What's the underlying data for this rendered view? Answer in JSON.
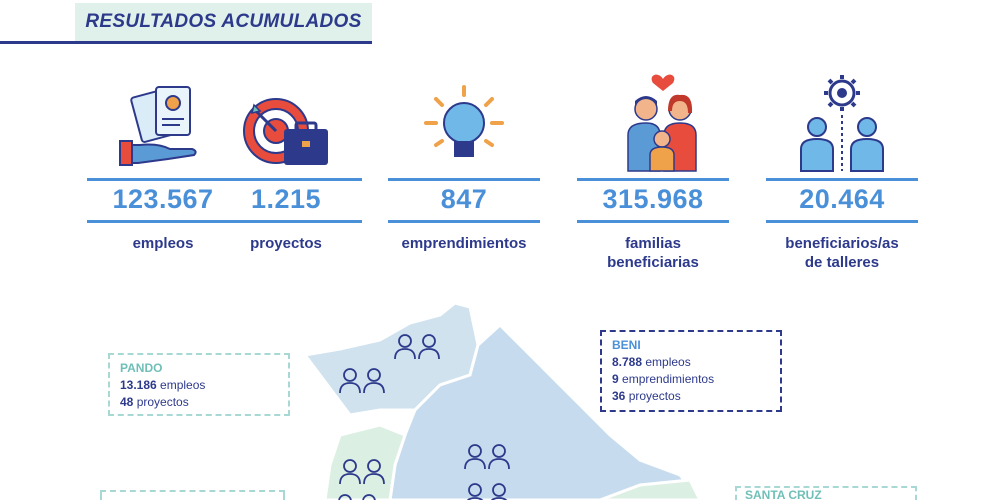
{
  "header": {
    "title": "RESULTADOS ACUMULADOS"
  },
  "stats": [
    {
      "value": "123.567",
      "label": "empleos",
      "icon": "job-offer-hand-icon"
    },
    {
      "value": "1.215",
      "label": "proyectos",
      "icon": "target-briefcase-icon"
    },
    {
      "value": "847",
      "label": "emprendimientos",
      "icon": "lightbulb-icon"
    },
    {
      "value": "315.968",
      "label1": "familias",
      "label2": "beneficiarias",
      "icon": "family-heart-icon"
    },
    {
      "value": "20.464",
      "label1": "beneficiarios/as",
      "label2": "de talleres",
      "icon": "people-gear-icon"
    }
  ],
  "regions": {
    "pando": {
      "name": "PANDO",
      "lines": [
        {
          "num": "13.186",
          "text": "empleos"
        },
        {
          "num": "48",
          "text": "proyectos"
        }
      ]
    },
    "beni": {
      "name": "BENI",
      "lines": [
        {
          "num": "8.788",
          "text": "empleos"
        },
        {
          "num": "9",
          "text": "emprendimientos"
        },
        {
          "num": "36",
          "text": "proyectos"
        }
      ]
    },
    "santa_cruz": {
      "name": "SANTA CRUZ"
    }
  },
  "colors": {
    "navy": "#2d3a8c",
    "blue": "#4a90d9",
    "mint": "#dff1ea",
    "teal": "#6fbfb8"
  }
}
